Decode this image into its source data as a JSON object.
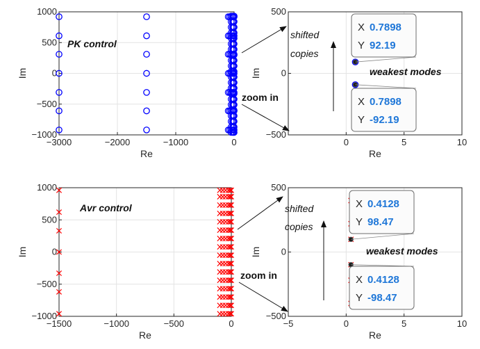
{
  "colors": {
    "pk": "#0000ff",
    "avr": "#ff0000",
    "tip_val": "#1f77d8",
    "grid": "#e3e3e3"
  },
  "chart_data": [
    {
      "id": "pk-full",
      "type": "scatter",
      "marker": "circle",
      "color": "#0000ff",
      "xlabel": "Re",
      "ylabel": "Im",
      "xlim": [
        -3000,
        0
      ],
      "ylim": [
        -1000,
        1000
      ],
      "xticks": [
        -3000,
        -2000,
        -1000,
        0
      ],
      "yticks": [
        -1000,
        -500,
        0,
        500,
        1000
      ],
      "grid": true,
      "annotations": {
        "label": "PK control"
      },
      "column_re": [
        -3000,
        -1500,
        -100,
        -75,
        -50,
        -25,
        -10,
        0
      ],
      "column_im": [
        -920,
        -610,
        -310,
        0,
        310,
        610,
        920
      ],
      "dense_column_re": [
        -50,
        -25,
        -10,
        0
      ],
      "dense_column_im": [
        -960,
        -870,
        -780,
        -690,
        -600,
        -510,
        -420,
        -330,
        -240,
        -150,
        -60,
        30,
        120,
        210,
        300,
        390,
        480,
        570,
        660,
        750,
        840,
        930
      ]
    },
    {
      "id": "pk-zoom",
      "type": "scatter",
      "marker": "circle",
      "color": "#0000ff",
      "xlabel": "Re",
      "ylabel": "Im",
      "xlim": [
        -5,
        10
      ],
      "ylim": [
        -500,
        500
      ],
      "xticks": [
        0,
        5,
        10
      ],
      "yticks": [
        -500,
        0,
        500
      ],
      "grid": true,
      "points": [
        {
          "x": 1.2,
          "y": 380
        },
        {
          "x": 0.7898,
          "y": 92.19,
          "selected": true
        },
        {
          "x": 0.7898,
          "y": -92.19,
          "selected": true
        },
        {
          "x": 1.2,
          "y": -220
        },
        {
          "x": 1.2,
          "y": -380
        }
      ],
      "annotations": {
        "shifted": "shifted",
        "copies": "copies",
        "weakest": "weakest modes",
        "zoom": "zoom in"
      },
      "datatips": [
        {
          "x_label": "X",
          "x_value": "0.7898",
          "y_label": "Y",
          "y_value": "92.19"
        },
        {
          "x_label": "X",
          "x_value": "0.7898",
          "y_label": "Y",
          "y_value": "-92.19"
        }
      ]
    },
    {
      "id": "avr-full",
      "type": "scatter",
      "marker": "x",
      "color": "#ff0000",
      "xlabel": "Re",
      "ylabel": "Im",
      "xlim": [
        -1500,
        0
      ],
      "ylim": [
        -1000,
        1000
      ],
      "xticks": [
        -1500,
        -1000,
        -500,
        0
      ],
      "yticks": [
        -1000,
        -500,
        0,
        500,
        1000
      ],
      "grid": true,
      "annotations": {
        "label": "Avr control"
      },
      "sparse_column_re": [
        -1500
      ],
      "sparse_column_im": [
        -960,
        -620,
        -330,
        0,
        330,
        620,
        960
      ],
      "dense_column_re": [
        -100,
        -75,
        -50,
        -25,
        -10,
        0
      ],
      "dense_column_im": [
        -960,
        -830,
        -700,
        -570,
        -440,
        -310,
        -180,
        -50,
        80,
        210,
        340,
        470,
        600,
        730,
        860,
        960
      ]
    },
    {
      "id": "avr-zoom",
      "type": "scatter",
      "marker": "x",
      "color": "#ff0000",
      "xlabel": "Re",
      "ylabel": "Im",
      "xlim": [
        -5,
        10
      ],
      "ylim": [
        -500,
        500
      ],
      "xticks": [
        -5,
        0,
        5,
        10
      ],
      "yticks": [
        -500,
        0,
        500
      ],
      "grid": true,
      "points": [
        {
          "x": 0.4128,
          "y": 400
        },
        {
          "x": 0.4128,
          "y": 220
        },
        {
          "x": 0.4128,
          "y": 98.47,
          "selected": true
        },
        {
          "x": 0.4128,
          "y": -98.47,
          "selected": true
        },
        {
          "x": 0.4128,
          "y": -220
        },
        {
          "x": 0.4128,
          "y": -400
        }
      ],
      "annotations": {
        "shifted": "shifted",
        "copies": "copies",
        "weakest": "weakest modes",
        "zoom": "zoom in"
      },
      "datatips": [
        {
          "x_label": "X",
          "x_value": "0.4128",
          "y_label": "Y",
          "y_value": "98.47"
        },
        {
          "x_label": "X",
          "x_value": "0.4128",
          "y_label": "Y",
          "y_value": "-98.47"
        }
      ]
    }
  ]
}
